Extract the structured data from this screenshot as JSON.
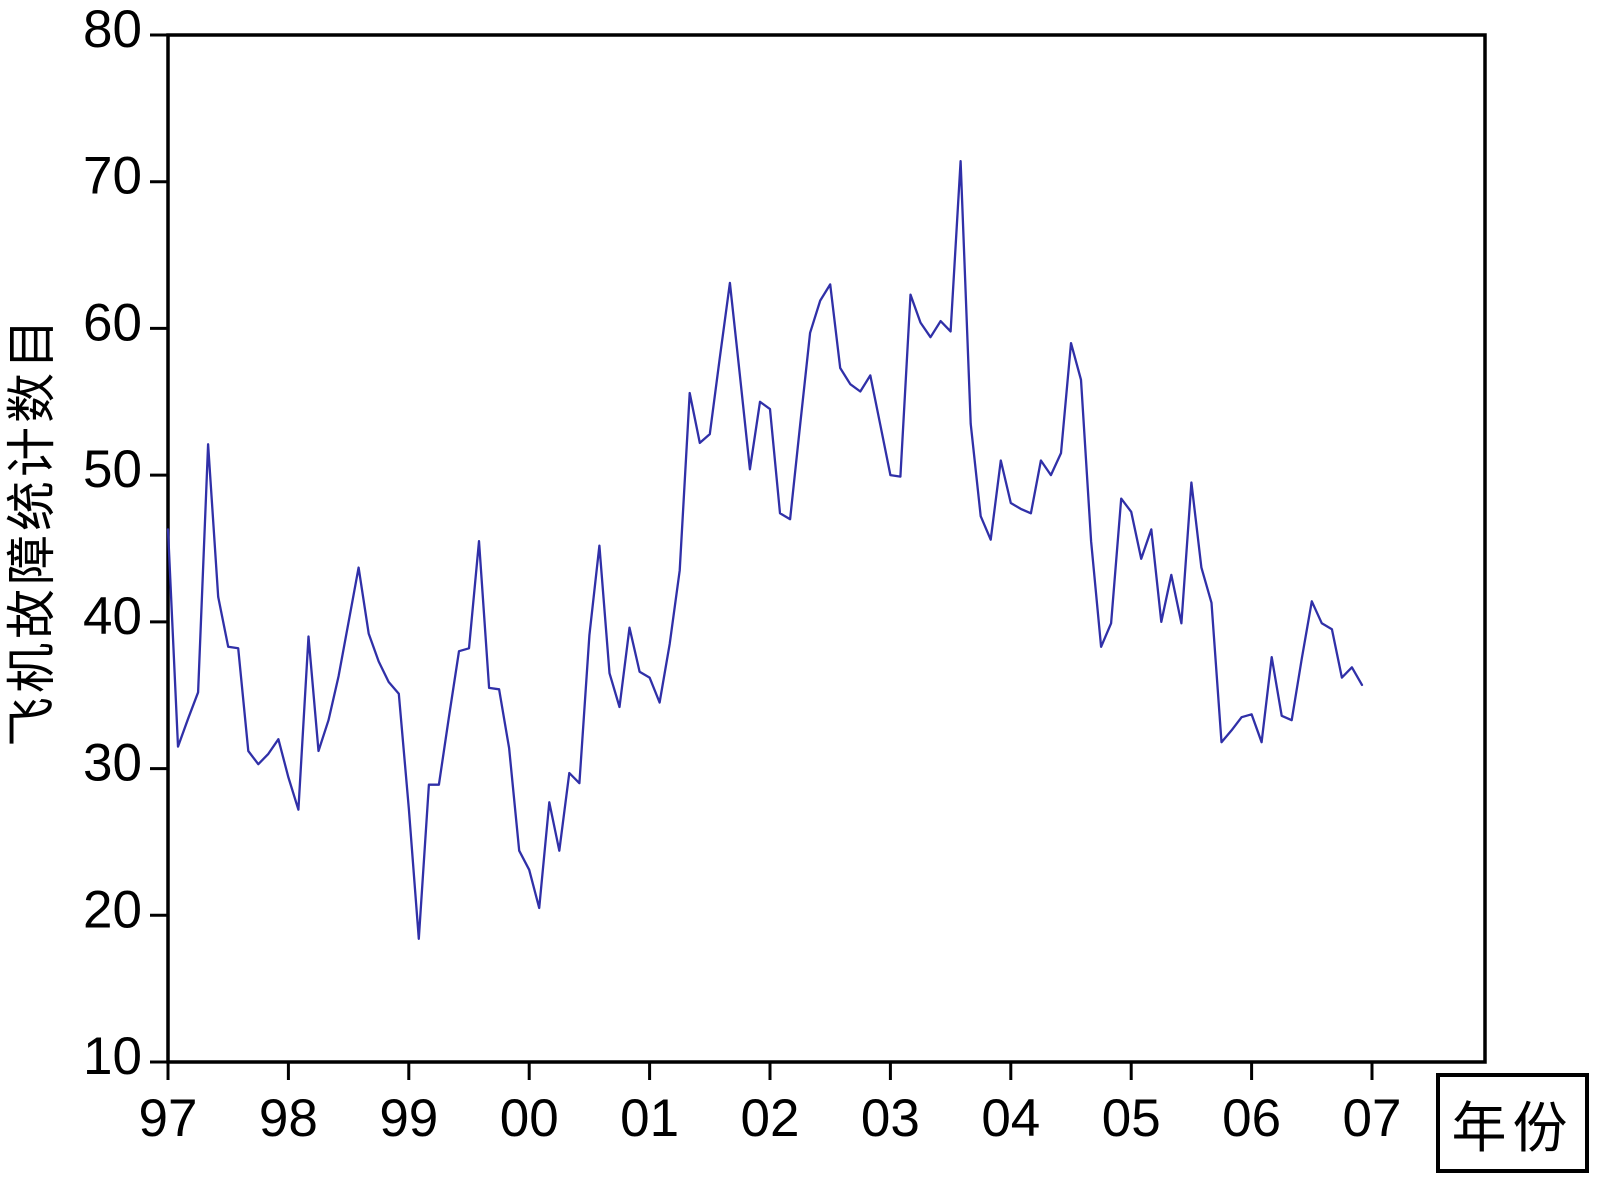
{
  "chart_data": {
    "type": "line",
    "title": "",
    "ylabel": "飞机故障统计数目",
    "xlabel_box_label": "年份",
    "x_tick_labels": [
      "97",
      "98",
      "99",
      "00",
      "01",
      "02",
      "03",
      "04",
      "05",
      "06",
      "07"
    ],
    "y_ticks": [
      80,
      70,
      60,
      50,
      40,
      30,
      20,
      10
    ],
    "ylim": [
      10,
      80
    ],
    "grid": "off",
    "legend": "none",
    "axis_color": "#000000",
    "line_color": "#3030A8",
    "background": "#FFFFFF",
    "x_axis": {
      "unit": "year",
      "sampling": "monthly",
      "start": "1997-01",
      "end": "2006-12"
    },
    "series": [
      {
        "name": "飞机故障统计数目",
        "values": [
          46.3,
          31.5,
          33.4,
          35.2,
          52.1,
          41.7,
          38.3,
          38.2,
          31.2,
          30.3,
          31.0,
          32.0,
          29.4,
          27.2,
          39.0,
          31.2,
          33.3,
          36.3,
          40.0,
          43.7,
          39.2,
          37.3,
          35.9,
          35.1,
          27.3,
          18.4,
          28.9,
          28.9,
          33.5,
          38.0,
          38.2,
          45.5,
          35.5,
          35.4,
          31.4,
          24.4,
          23.1,
          20.5,
          27.7,
          24.4,
          29.7,
          29.0,
          39.1,
          45.2,
          36.5,
          34.2,
          39.6,
          36.6,
          36.2,
          34.5,
          38.5,
          43.5,
          55.6,
          52.2,
          52.8,
          58.0,
          63.1,
          56.8,
          50.4,
          55.0,
          54.5,
          47.4,
          47.0,
          53.4,
          59.7,
          61.9,
          63.0,
          57.3,
          56.2,
          55.7,
          56.8,
          53.4,
          50.0,
          49.9,
          62.3,
          60.4,
          59.4,
          60.5,
          59.8,
          71.4,
          53.5,
          47.2,
          45.6,
          51.0,
          48.1,
          47.7,
          47.4,
          51.0,
          50.0,
          51.5,
          59.0,
          56.5,
          45.5,
          38.3,
          39.9,
          48.4,
          47.5,
          44.3,
          46.3,
          40.0,
          43.2,
          39.9,
          49.5,
          43.7,
          41.3,
          31.8,
          32.6,
          33.5,
          33.7,
          31.8,
          37.6,
          33.6,
          33.3,
          37.5,
          41.4,
          39.9,
          39.5,
          36.2,
          36.9,
          35.7
        ]
      }
    ]
  }
}
